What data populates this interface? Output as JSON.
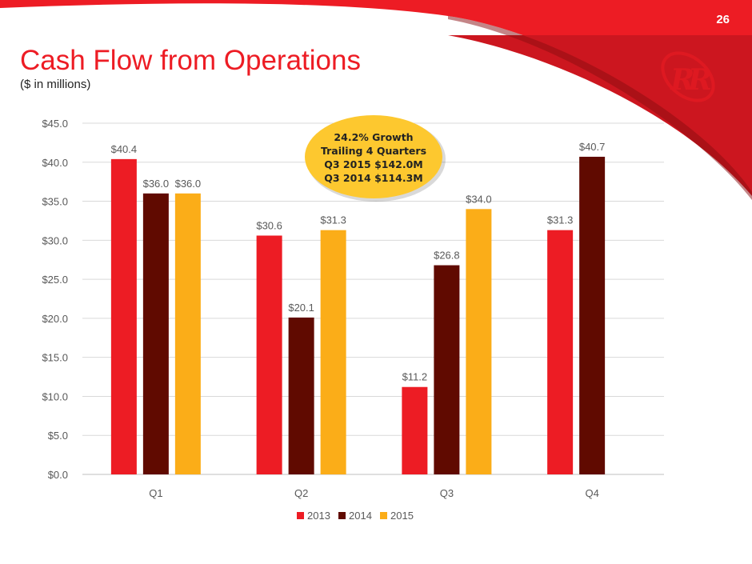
{
  "page_number": "26",
  "title": "Cash Flow from Operations",
  "subtitle": "($ in millions)",
  "logo_text": "RR",
  "callout": {
    "lines": [
      "24.2% Growth",
      "Trailing 4 Quarters",
      "Q3 2015 $142.0M",
      "Q3 2014 $114.3M"
    ],
    "color": "#fdc82f"
  },
  "chart_data": {
    "type": "bar",
    "categories": [
      "Q1",
      "Q2",
      "Q3",
      "Q4"
    ],
    "series": [
      {
        "name": "2013",
        "color": "#ed1c24",
        "values": [
          40.4,
          30.6,
          11.2,
          31.3
        ],
        "labels": [
          "$40.4",
          "$30.6",
          "$11.2",
          "$31.3"
        ]
      },
      {
        "name": "2014",
        "color": "#600a00",
        "values": [
          36.0,
          20.1,
          26.8,
          40.7
        ],
        "labels": [
          "$36.0",
          "$20.1",
          "$26.8",
          "$40.7"
        ]
      },
      {
        "name": "2015",
        "color": "#fbad18",
        "values": [
          36.0,
          31.3,
          34.0,
          null
        ],
        "labels": [
          "$36.0",
          "$31.3",
          "$34.0",
          null
        ]
      }
    ],
    "ylim": [
      0,
      45
    ],
    "yticks": [
      "$0.0",
      "$5.0",
      "$10.0",
      "$15.0",
      "$20.0",
      "$25.0",
      "$30.0",
      "$35.0",
      "$40.0",
      "$45.0"
    ],
    "grid": true,
    "legend": "bottom"
  }
}
